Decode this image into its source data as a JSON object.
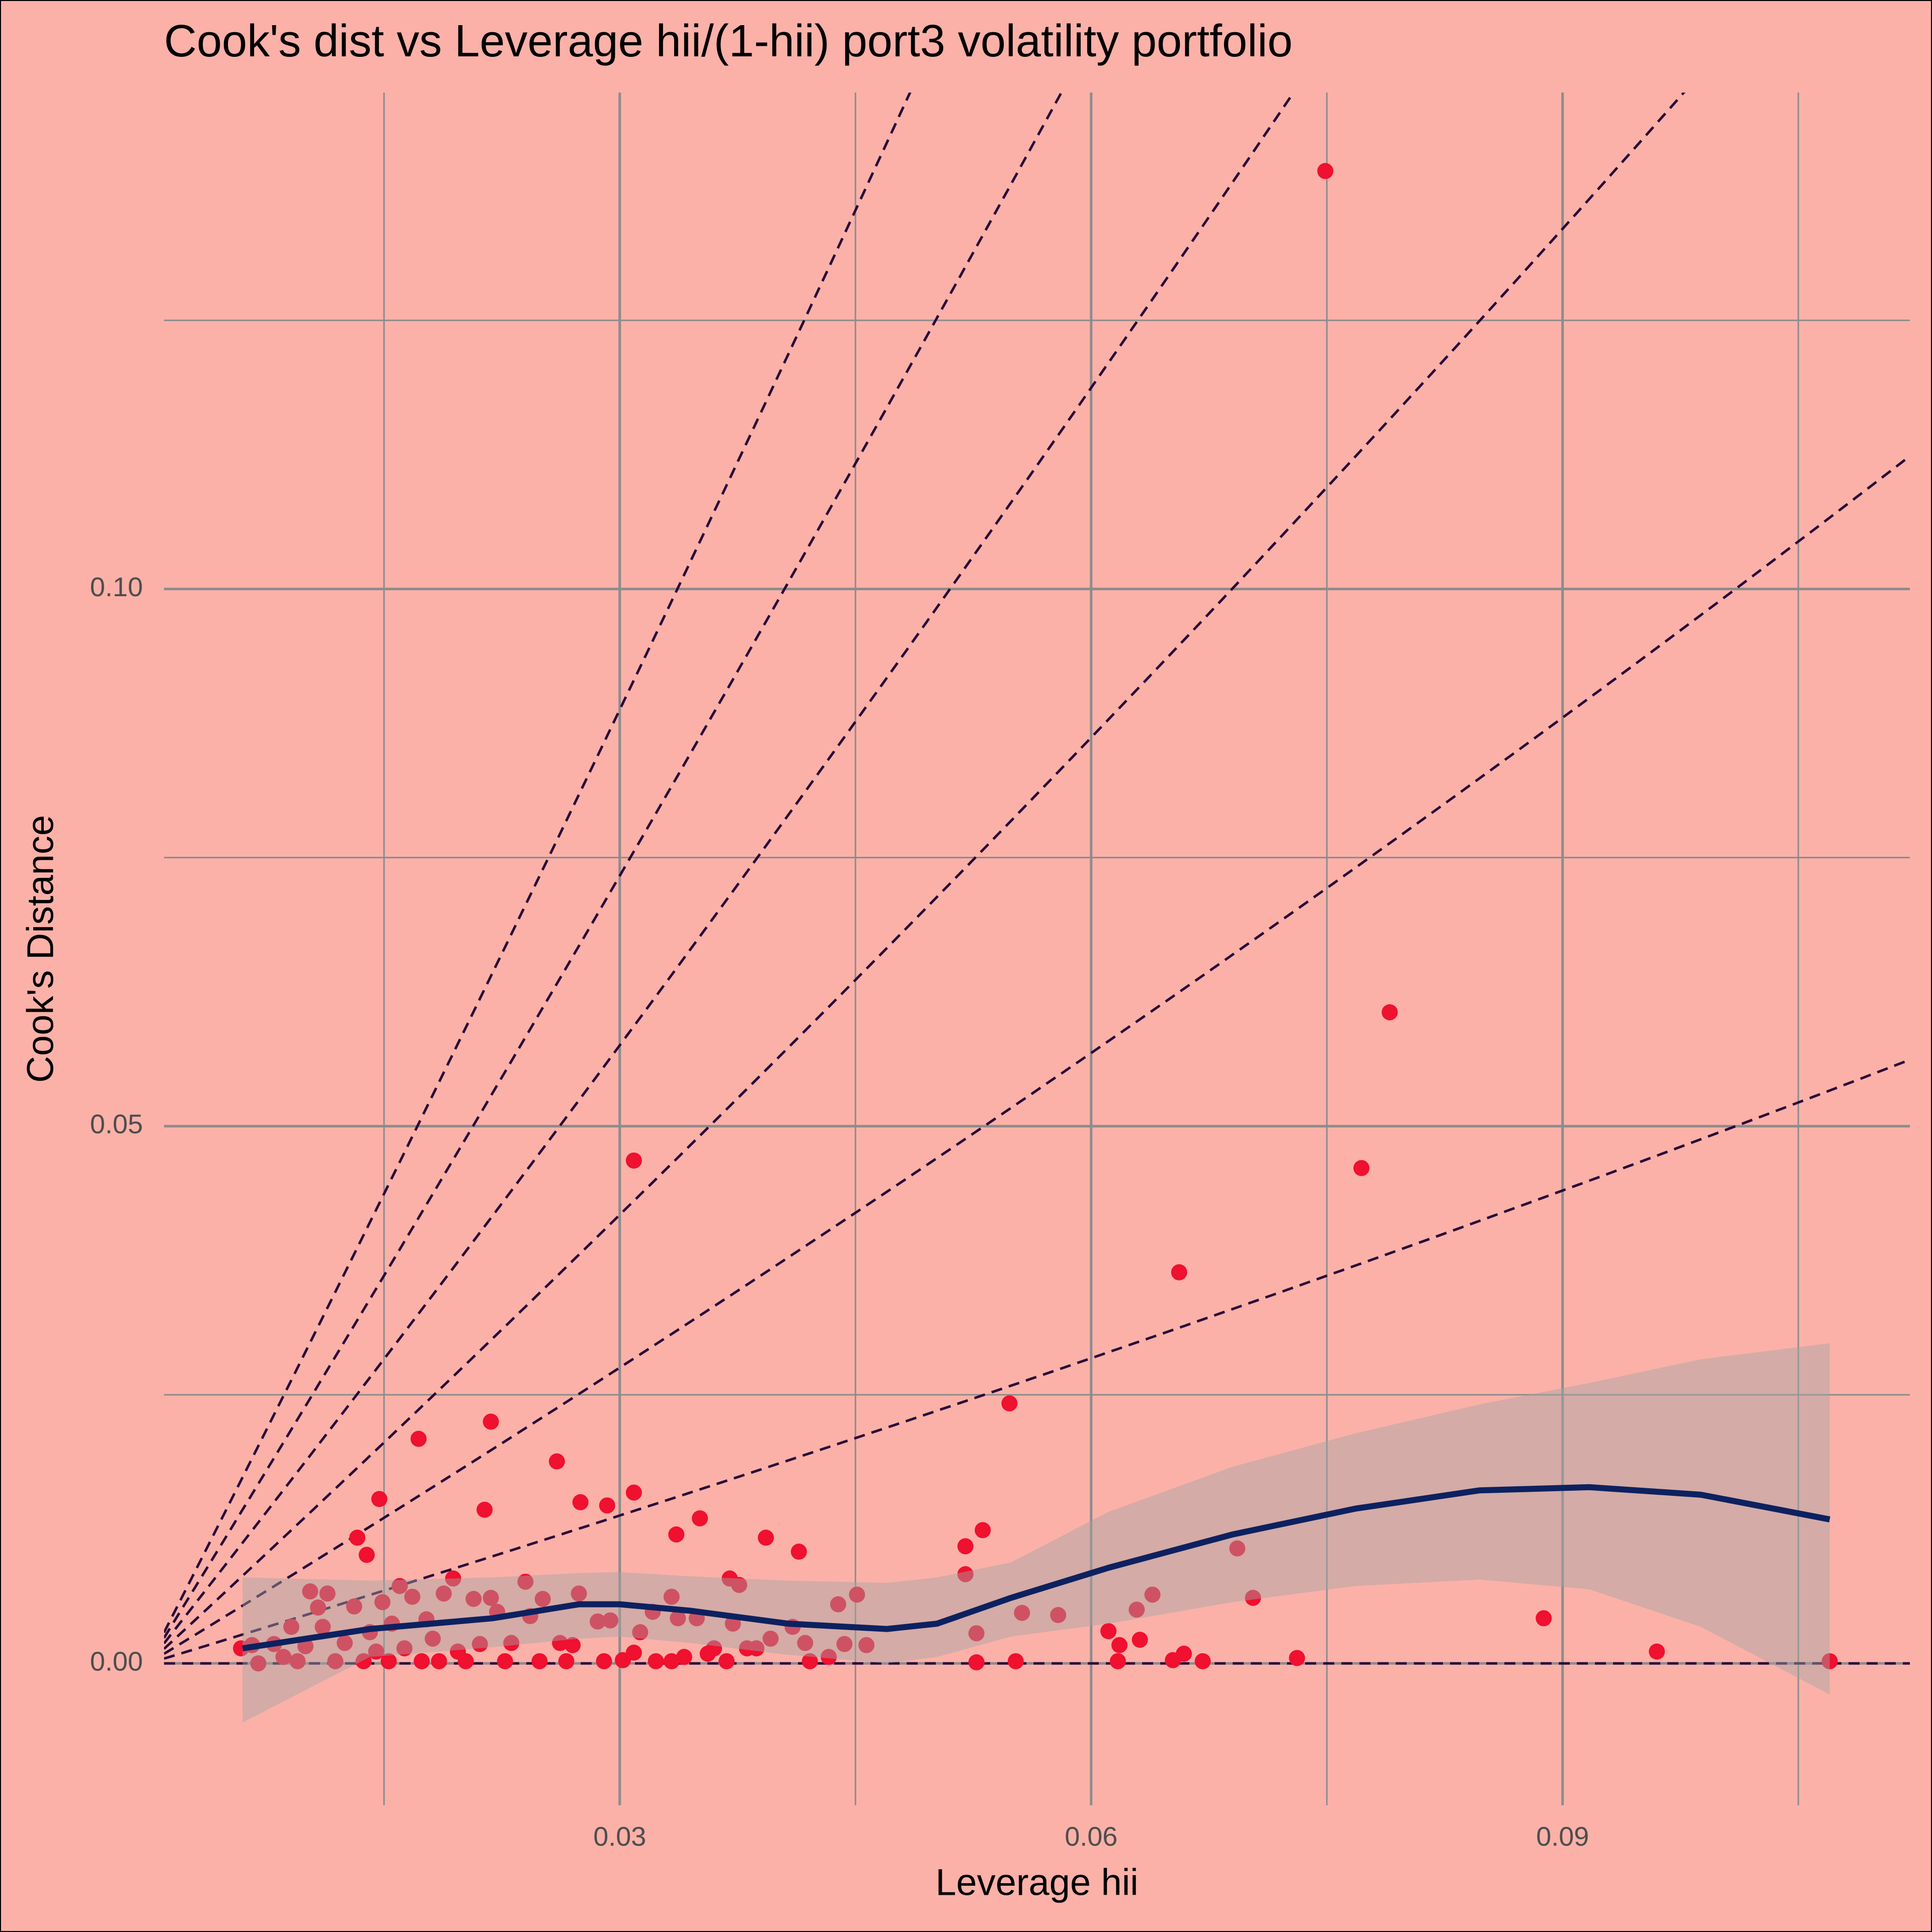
{
  "chart_data": {
    "type": "scatter",
    "title": "Cook's dist vs Leverage hii/(1-hii) port3 volatility portfolio",
    "x_label": "Leverage hii",
    "y_label": "Cook's Distance",
    "xlim": [
      0.001,
      0.1121
    ],
    "ylim": [
      -0.0132,
      0.1462
    ],
    "xticks": [
      0.03,
      0.06,
      0.09
    ],
    "yticks": [
      {
        "value": 0,
        "label": "0.00"
      },
      0.05,
      {
        "value": 0.1,
        "label": "0.10"
      }
    ],
    "xminor": [
      0.015,
      0.045,
      0.075,
      0.105
    ],
    "yminor": [
      0.025,
      0.075,
      0.125
    ],
    "grid": true,
    "background": "#fbb1a8",
    "grid_color": "#8c8c8c",
    "point_color": "#f0102f",
    "smooth_color": "#0d2160",
    "band_color": "#a3a3a3",
    "contour_color": "#2a0a3a",
    "contour_levels": [
      0,
      0.445,
      0.89,
      1.35,
      1.86,
      2.37,
      2.87
    ],
    "x": [
      0.0749,
      0.079,
      0.0772,
      0.0309,
      0.0656,
      0.0548,
      0.0172,
      0.0218,
      0.026,
      0.0147,
      0.0214,
      0.0275,
      0.0292,
      0.0309,
      0.0336,
      0.0351,
      0.0133,
      0.0139,
      0.0393,
      0.0414,
      0.052,
      0.0531,
      0.052,
      0.0693,
      0.0703,
      0.0639,
      0.0888,
      0.096,
      0.107,
      0.0731,
      0.0671,
      0.0659,
      0.0652,
      0.0617,
      0.0618,
      0.0611,
      0.0629,
      0.0631,
      0.0556,
      0.0579,
      0.0527,
      0.0527,
      0.0552,
      0.0451,
      0.0439,
      0.0457,
      0.0443,
      0.0433,
      0.0418,
      0.041,
      0.0396,
      0.037,
      0.0376,
      0.0372,
      0.0381,
      0.0368,
      0.036,
      0.0356,
      0.0341,
      0.0333,
      0.0337,
      0.0349,
      0.0333,
      0.0321,
      0.0313,
      0.0309,
      0.0302,
      0.029,
      0.0294,
      0.0286,
      0.0274,
      0.027,
      0.0266,
      0.0262,
      0.0251,
      0.0249,
      0.0243,
      0.024,
      0.0231,
      0.0227,
      0.0222,
      0.0218,
      0.0211,
      0.0207,
      0.0202,
      0.0197,
      0.0194,
      0.0188,
      0.0181,
      0.0177,
      0.0174,
      0.0168,
      0.016,
      0.0155,
      0.0153,
      0.0149,
      0.0145,
      0.0141,
      0.0137,
      0.0131,
      0.0125,
      0.0119,
      0.0114,
      0.0111,
      0.0108,
      0.0103,
      0.01,
      0.0095,
      0.0091,
      0.0086,
      0.008,
      0.007,
      0.0066,
      0.0059,
      0.0163,
      0.0185,
      0.0387,
      0.0421,
      0.0323
    ],
    "values": [
      0.1389,
      0.0606,
      0.0461,
      0.0468,
      0.0364,
      0.0242,
      0.0209,
      0.0225,
      0.0188,
      0.0153,
      0.0143,
      0.015,
      0.0147,
      0.0159,
      0.012,
      0.0135,
      0.0117,
      0.0101,
      0.0117,
      0.0104,
      0.0109,
      0.0124,
      0.0083,
      0.0107,
      0.0061,
      0.0064,
      0.0042,
      0.0011,
      0.0002,
      0.0005,
      0.0002,
      0.0009,
      0.0003,
      0.0002,
      0.0017,
      0.003,
      0.005,
      0.0022,
      0.0047,
      0.0045,
      0.0028,
      0.0001,
      0.0002,
      0.0064,
      0.0055,
      0.0017,
      0.0018,
      0.0006,
      0.0019,
      0.0034,
      0.0023,
      0.0079,
      0.0073,
      0.0037,
      0.0014,
      0.0002,
      0.0014,
      0.0009,
      0.0006,
      0.0002,
      0.0042,
      0.0042,
      0.0062,
      0.0048,
      0.0029,
      0.001,
      0.0003,
      0.0002,
      0.004,
      0.0039,
      0.0065,
      0.0017,
      0.0002,
      0.0019,
      0.006,
      0.0002,
      0.0044,
      0.0076,
      0.0019,
      0.0002,
      0.0048,
      0.0061,
      0.0018,
      0.006,
      0.0002,
      0.0011,
      0.0079,
      0.0065,
      0.0023,
      0.0041,
      0.0002,
      0.0062,
      0.0072,
      0.0037,
      0.0002,
      0.0057,
      0.0011,
      0.0029,
      0.0002,
      0.0053,
      0.0019,
      0.0002,
      0.0065,
      0.0034,
      0.0052,
      0.0067,
      0.0016,
      0.0002,
      0.0034,
      0.0006,
      0.0018,
      0.0,
      0.0017,
      0.0014,
      0.0014,
      0.0002,
      0.0014,
      0.0002,
      0.0002
    ],
    "smooth": {
      "x": [
        0.006,
        0.0141,
        0.0219,
        0.0274,
        0.03,
        0.0345,
        0.0407,
        0.047,
        0.0502,
        0.0549,
        0.0611,
        0.069,
        0.0768,
        0.0847,
        0.0917,
        0.0988,
        0.107
      ],
      "values": [
        0.0014,
        0.0032,
        0.0042,
        0.0055,
        0.0055,
        0.0049,
        0.0037,
        0.0032,
        0.0037,
        0.0061,
        0.0089,
        0.012,
        0.0144,
        0.0161,
        0.0164,
        0.0157,
        0.0134
      ],
      "upper": [
        0.008,
        0.0077,
        0.008,
        0.0084,
        0.0085,
        0.0081,
        0.0077,
        0.0075,
        0.008,
        0.0094,
        0.0141,
        0.0183,
        0.0214,
        0.0241,
        0.0261,
        0.0283,
        0.0298
      ],
      "lower": [
        -0.0055,
        0.0006,
        0.0015,
        0.0023,
        0.0025,
        0.0019,
        0.0008,
        0.0,
        0.0006,
        0.0025,
        0.0037,
        0.0057,
        0.0072,
        0.0078,
        0.0069,
        0.0034,
        -0.0029
      ]
    }
  }
}
